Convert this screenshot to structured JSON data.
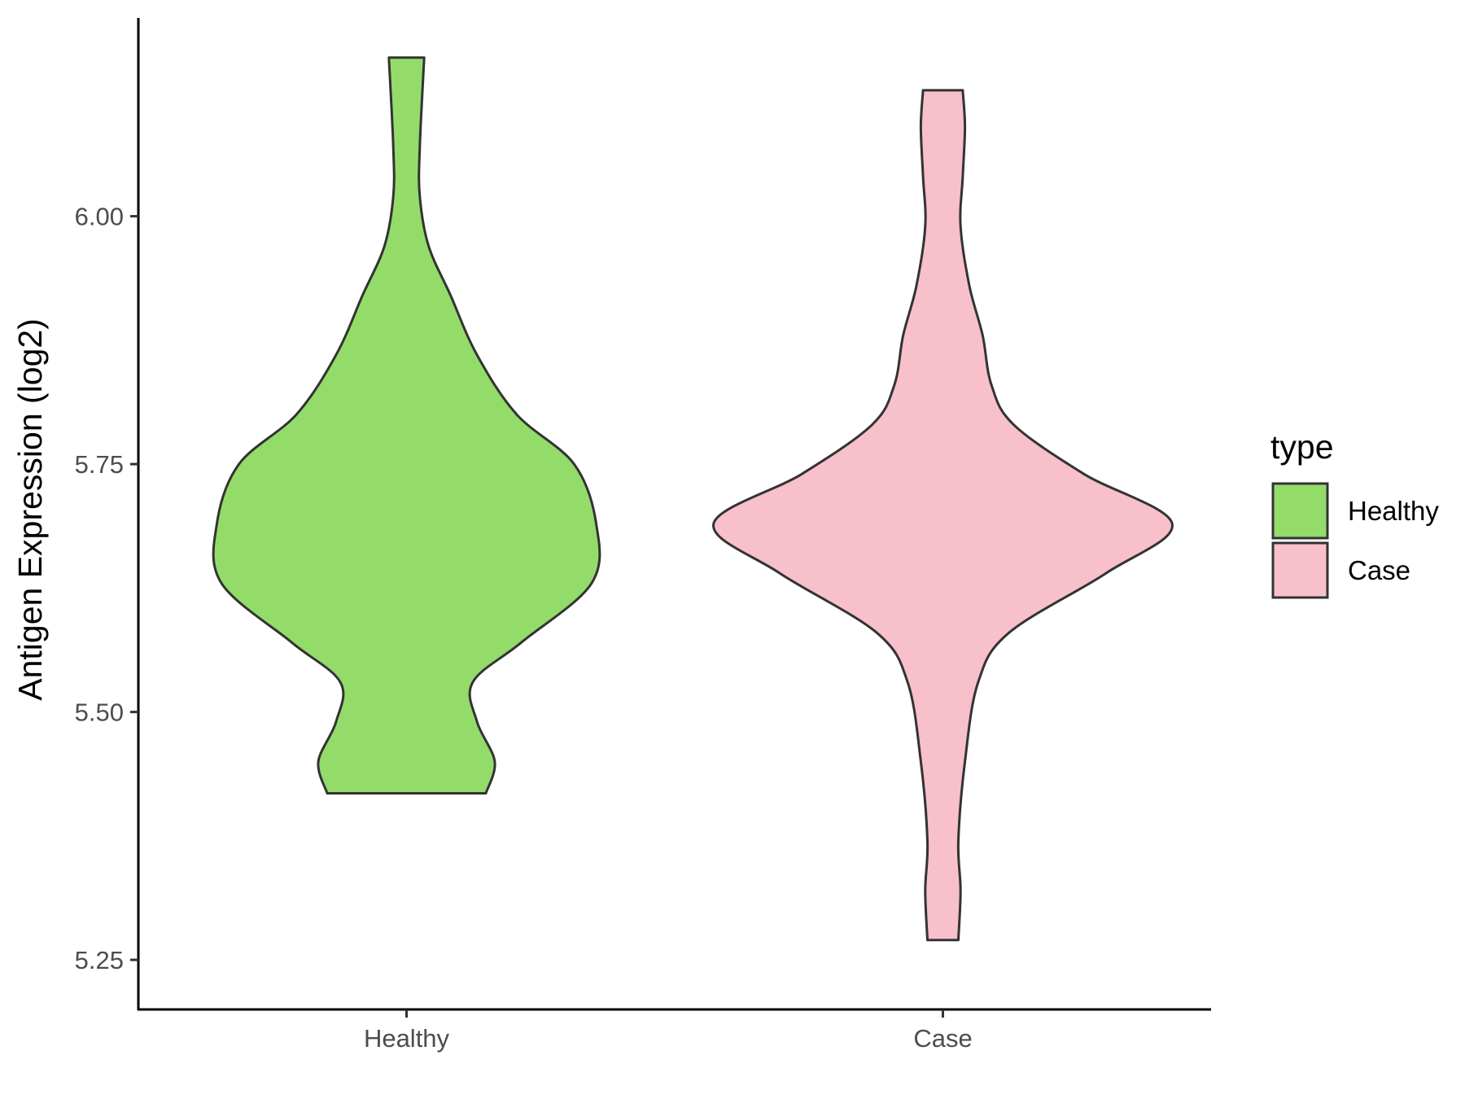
{
  "chart_data": {
    "type": "violin",
    "ylabel": "Antigen Expression (log2)",
    "xlabel": "",
    "categories": [
      "Healthy",
      "Case"
    ],
    "ylim": [
      5.2,
      6.2
    ],
    "yticks": [
      5.25,
      5.5,
      5.75,
      6.0
    ],
    "ytick_labels": [
      "5.25",
      "5.50",
      "5.75",
      "6.00"
    ],
    "grid": false,
    "legend": {
      "title": "type",
      "position": "right",
      "entries": [
        {
          "label": "Healthy",
          "color": "#93DC6A"
        },
        {
          "label": "Case",
          "color": "#F7C0CB"
        }
      ]
    },
    "series": [
      {
        "name": "Healthy",
        "color": "#93DC6A",
        "min": 5.418,
        "max": 6.16,
        "density": [
          [
            5.418,
            0.18
          ],
          [
            5.45,
            0.2
          ],
          [
            5.49,
            0.16
          ],
          [
            5.53,
            0.15
          ],
          [
            5.57,
            0.26
          ],
          [
            5.63,
            0.42
          ],
          [
            5.69,
            0.43
          ],
          [
            5.75,
            0.38
          ],
          [
            5.8,
            0.25
          ],
          [
            5.86,
            0.16
          ],
          [
            5.92,
            0.1
          ],
          [
            5.97,
            0.05
          ],
          [
            6.02,
            0.03
          ],
          [
            6.07,
            0.03
          ],
          [
            6.16,
            0.04
          ]
        ]
      },
      {
        "name": "Case",
        "color": "#F7C0CB",
        "min": 5.27,
        "max": 6.127,
        "density": [
          [
            5.27,
            0.035
          ],
          [
            5.32,
            0.04
          ],
          [
            5.37,
            0.035
          ],
          [
            5.45,
            0.05
          ],
          [
            5.53,
            0.08
          ],
          [
            5.58,
            0.15
          ],
          [
            5.64,
            0.37
          ],
          [
            5.69,
            0.52
          ],
          [
            5.74,
            0.32
          ],
          [
            5.79,
            0.16
          ],
          [
            5.83,
            0.11
          ],
          [
            5.88,
            0.09
          ],
          [
            5.93,
            0.06
          ],
          [
            5.99,
            0.04
          ],
          [
            6.04,
            0.045
          ],
          [
            6.09,
            0.05
          ],
          [
            6.127,
            0.045
          ]
        ]
      }
    ]
  }
}
